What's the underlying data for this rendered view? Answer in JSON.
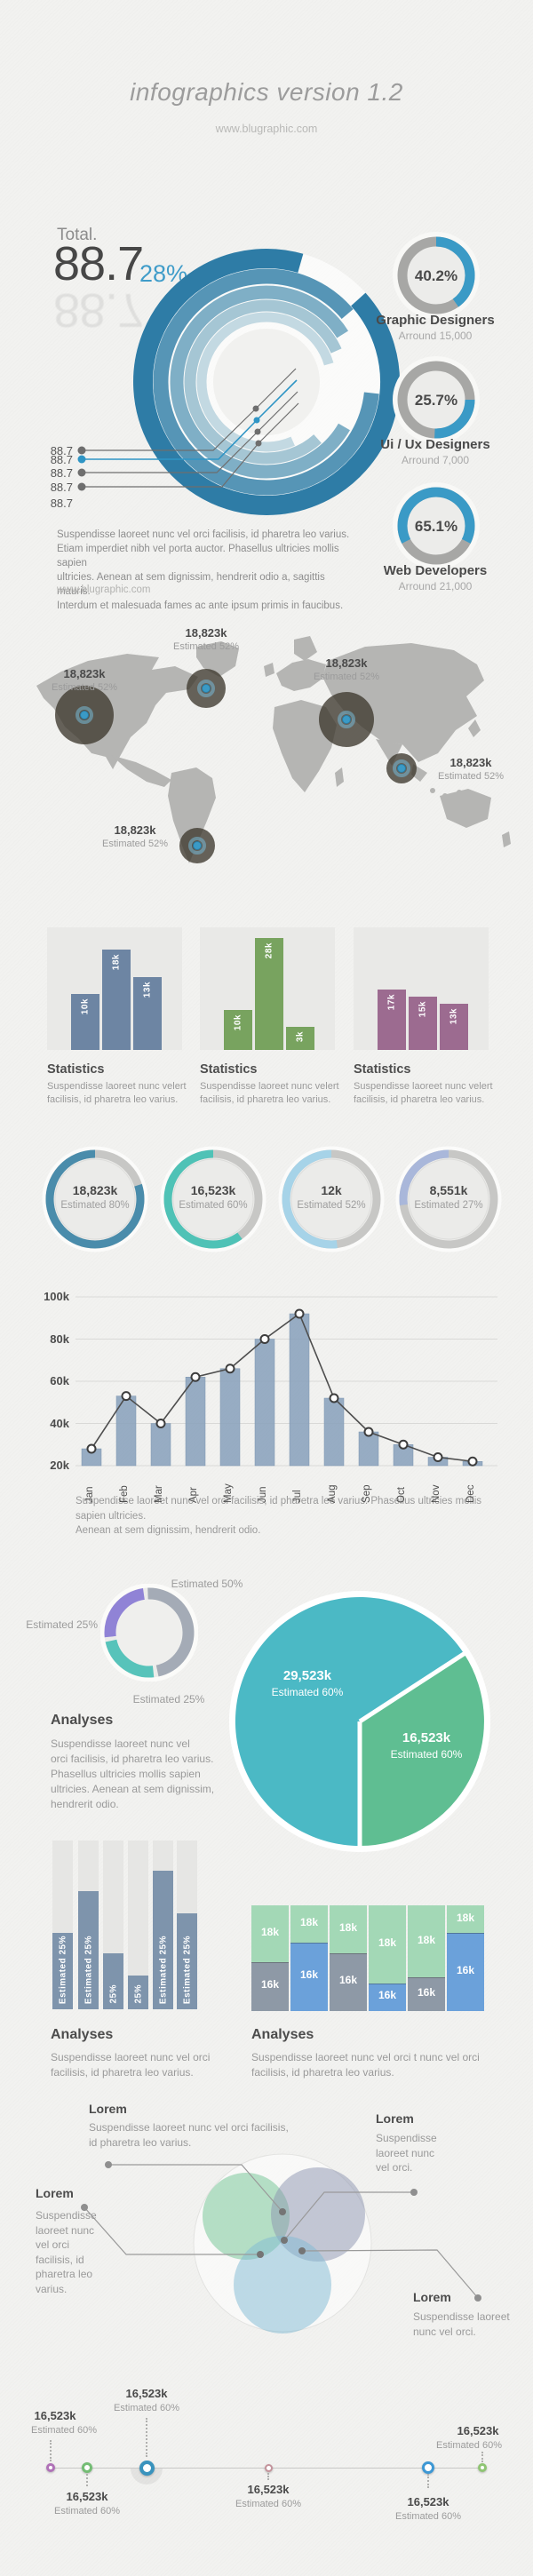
{
  "texts": {
    "title": "infographics version 1.2",
    "website": "www.blugraphic.com",
    "overview_description": "Suspendisse laoreet nunc vel orci facilisis, id pharetra leo varius.\nEtiam imperdiet nibh vel porta auctor. Phasellus ultricies mollis sapien\nultricies. Aenean at sem dignissim, hendrerit odio a, sagittis mauris.\nInterdum et malesuada fames ac ante ipsum primis in faucibus.",
    "overview_link": "www.blugraphic.com",
    "monthly_caption": "Suspendisse laoreet nunc vel orci facilisis, id pharetra leo varius. Phasellus ultricies mollis sapien ultricies.\nAenean at sem dignissim, hendrerit odio.",
    "analyses_title": "Analyses",
    "analyses_caption": "Suspendisse laoreet nunc vel\norci facilisis, id pharetra leo varius.\nPhasellus ultricies mollis sapien\nultricies. Aenean at sem dignissim,\nhendrerit odio."
  },
  "chart_data": [
    {
      "id": "total-overview-rings",
      "type": "donut",
      "title": "Total.",
      "value": "88.7",
      "percent": "28%",
      "legend_values": [
        "88.7",
        "88.7",
        "88.7",
        "88.7",
        "88.7"
      ],
      "ring_colors": [
        "#2e7ca6",
        "#5695b6",
        "#7fafc6",
        "#a5c6d4",
        "#c3d9e2"
      ],
      "accent": "#3f9cc9"
    },
    {
      "id": "profession-donuts",
      "type": "donut-set",
      "accent": "#3a9ac6",
      "track": "#a7a7a5",
      "items": [
        {
          "percent_label": "40.2%",
          "percent": 40.2,
          "name": "Graphic Designers",
          "around": "Arround 15,000"
        },
        {
          "percent_label": "25.7%",
          "percent": 25.7,
          "name": "Ui / Ux Designers",
          "around": "Arround 7,000"
        },
        {
          "percent_label": "65.1%",
          "percent": 65.1,
          "name": "Web Developers",
          "around": "Arround 21,000"
        }
      ]
    },
    {
      "id": "world-map-bubbles",
      "type": "map-bubbles",
      "bubbles": [
        {
          "value": "18,823k",
          "estimated": "Estimated 52%"
        },
        {
          "value": "18,823k",
          "estimated": "Estimated 52%"
        },
        {
          "value": "18,823k",
          "estimated": "Estimated 52%"
        },
        {
          "value": "18,823k",
          "estimated": "Estimated 52%"
        },
        {
          "value": "18,823k",
          "estimated": "Estimated 52%"
        }
      ]
    },
    {
      "id": "statistics-bar-panels",
      "type": "bar-set",
      "panels": [
        {
          "title": "Statistics",
          "caption": "Suspendisse laoreet nunc velert\nfacilisis, id pharetra leo varius.",
          "color": "#6d85a3",
          "labels": [
            "10k",
            "18k",
            "13k"
          ],
          "values": [
            10,
            18,
            13
          ]
        },
        {
          "title": "Statistics",
          "caption": "Suspendisse laoreet nunc velert\nfacilisis, id pharetra leo varius.",
          "color": "#78a35f",
          "labels": [
            "10k",
            "28k",
            "3k"
          ],
          "values": [
            10,
            28,
            3
          ]
        },
        {
          "title": "Statistics",
          "caption": "Suspendisse laoreet nunc velert\nfacilisis, id pharetra leo varius.",
          "color": "#9c6b90",
          "labels": [
            "17k",
            "15k",
            "13k"
          ],
          "values": [
            17,
            15,
            13
          ]
        }
      ]
    },
    {
      "id": "estimate-gauges",
      "type": "donut-set",
      "track": "#c7c7c5",
      "items": [
        {
          "value": "18,823k",
          "estimated": "Estimated 80%",
          "percent": 80,
          "color": "#4a8cab"
        },
        {
          "value": "16,523k",
          "estimated": "Estimated 60%",
          "percent": 60,
          "color": "#4fc2b6"
        },
        {
          "value": "12k",
          "estimated": "Estimated 52%",
          "percent": 52,
          "color": "#a6d3e8"
        },
        {
          "value": "8,551k",
          "estimated": "Estimated 27%",
          "percent": 27,
          "color": "#a9b7da"
        }
      ]
    },
    {
      "id": "monthly-combo",
      "type": "bar",
      "categories": [
        "Jan",
        "Feb",
        "Mar",
        "Apr",
        "May",
        "Jun",
        "Jul",
        "Aug",
        "Sep",
        "Oct",
        "Nov",
        "Dec"
      ],
      "series": [
        {
          "name": "monthly-bars",
          "values": [
            28,
            53,
            40,
            62,
            66,
            80,
            92,
            52,
            36,
            30,
            24,
            22
          ]
        },
        {
          "name": "trend-line",
          "values": [
            28,
            53,
            40,
            62,
            66,
            80,
            92,
            52,
            36,
            30,
            24,
            22
          ]
        }
      ],
      "yticks": [
        "100k",
        "80k",
        "60k",
        "40k",
        "20k"
      ],
      "ylim": [
        20,
        100
      ],
      "bar_color": "#8aa2bc",
      "line_color": "#4e4e4e",
      "grid": true
    },
    {
      "id": "analysis-donut",
      "type": "donut",
      "labels": {
        "top": "Estimated 50%",
        "left": "Estimated 25%",
        "bottom": "Estimated 25%"
      },
      "segments": [
        {
          "percent": 50,
          "color": "#a4abb6"
        },
        {
          "percent": 25,
          "color": "#57c3ba"
        },
        {
          "percent": 25,
          "color": "#9083d6"
        }
      ]
    },
    {
      "id": "analysis-pie",
      "type": "pie",
      "slices": [
        {
          "value": "29,523k",
          "estimated": "Estimated 60%",
          "angle": 237,
          "color": "#4bb9c5"
        },
        {
          "value": "16,523k",
          "estimated": "Estimated 60%",
          "angle": 123,
          "color": "#5fbe92"
        }
      ]
    },
    {
      "id": "analysis-bars",
      "type": "bar",
      "title": "Analyses",
      "caption": "Suspendisse laoreet nunc vel orci\nfacilisis, id pharetra leo varius.",
      "labels": [
        "Estimated 25%",
        "Estimated 25%",
        "25%",
        "25%",
        "Estimated 25%",
        "Estimated 25%"
      ],
      "values": [
        0.45,
        0.7,
        0.33,
        0.2,
        0.82,
        0.57
      ],
      "color": "#7e94ac"
    },
    {
      "id": "analysis-mosaic",
      "type": "stacked-bar",
      "title": "Analyses",
      "caption": "Suspendisse laoreet nunc vel orci t nunc vel orci\nfacilisis, id pharetra leo varius.",
      "colors": {
        "green": "#a3d8b6",
        "blue": "#6ba1da",
        "gray": "#8e99a6"
      },
      "columns": [
        {
          "top_label": "18k",
          "bottom_label": "16k",
          "bottom_fraction": 0.46,
          "bottom_color": "gray"
        },
        {
          "top_label": "18k",
          "bottom_label": "16k",
          "bottom_fraction": 0.64,
          "bottom_color": "blue"
        },
        {
          "top_label": "18k",
          "bottom_label": "16k",
          "bottom_fraction": 0.54,
          "bottom_color": "gray"
        },
        {
          "top_label": "18k",
          "bottom_label": "16k",
          "bottom_fraction": 0.25,
          "bottom_color": "blue"
        },
        {
          "top_label": "18k",
          "bottom_label": "16k",
          "bottom_fraction": 0.31,
          "bottom_color": "gray"
        },
        {
          "top_label": "18k",
          "bottom_label": "16k",
          "bottom_fraction": 0.74,
          "bottom_color": "blue"
        }
      ]
    },
    {
      "id": "venn-diagram",
      "type": "venn",
      "colors": [
        "#7cc99b",
        "#8c93b0",
        "#7fb9d4"
      ],
      "callouts": [
        {
          "title": "Lorem",
          "text": "Suspendisse laoreet nunc vel orci facilisis,\nid pharetra leo varius."
        },
        {
          "title": "Lorem",
          "text": "Suspendisse\nlaoreet nunc\nvel orci\nfacilisis, id\npharetra leo\nvarius."
        },
        {
          "title": "Lorem",
          "text": "Suspendisse\nlaoreet nunc\nvel orci."
        },
        {
          "title": "Lorem",
          "text": "Suspendisse laoreet\nnunc vel orci."
        }
      ]
    },
    {
      "id": "timeline",
      "type": "timeline",
      "nodes": [
        {
          "value": "16,523k",
          "estimated": "Estimated 60%",
          "color": "#b072b8",
          "side": "top",
          "size": "small"
        },
        {
          "value": "16,523k",
          "estimated": "Estimated 60%",
          "color": "#74bd74",
          "side": "bottom",
          "size": "medium"
        },
        {
          "value": "16,523k",
          "estimated": "Estimated 60%",
          "color": "#3a93bd",
          "side": "top",
          "size": "large"
        },
        {
          "value": "16,523k",
          "estimated": "Estimated 60%",
          "color": "#c4939b",
          "side": "bottom",
          "size": "small"
        },
        {
          "value": "16,523k",
          "estimated": "Estimated 60%",
          "color": "#3e98d4",
          "side": "bottom",
          "size": "medium"
        },
        {
          "value": "16,523k",
          "estimated": "Estimated 60%",
          "color": "#8fc573",
          "side": "top",
          "size": "small"
        }
      ]
    }
  ]
}
